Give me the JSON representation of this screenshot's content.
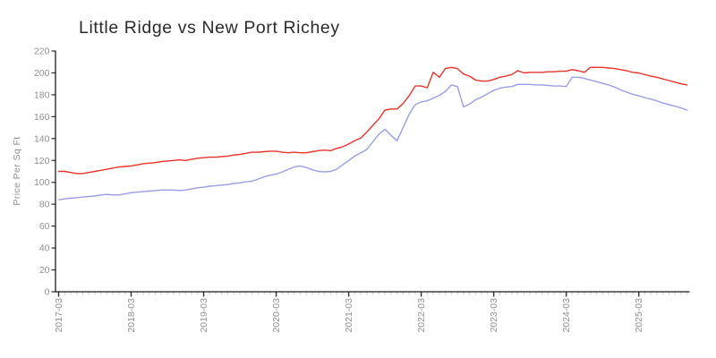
{
  "chart_data": {
    "type": "line",
    "title": "Little Ridge vs New Port Richey",
    "xlabel": "",
    "ylabel": "Price Per Sq Ft",
    "x_interval": "monthly",
    "x_start_month": "2017-03",
    "x_end_month": "2025-11",
    "x_tick_labels": [
      "2017-03",
      "2018-03",
      "2019-03",
      "2020-03",
      "2021-03",
      "2022-03",
      "2023-03",
      "2024-03",
      "2025-03"
    ],
    "x_tick_month_indices": [
      0,
      12,
      24,
      36,
      48,
      60,
      72,
      84,
      96
    ],
    "y_ticks": [
      0,
      20,
      40,
      60,
      80,
      100,
      120,
      140,
      160,
      180,
      200,
      220
    ],
    "ylim": [
      0,
      220
    ],
    "grid": false,
    "legend": "none",
    "series": [
      {
        "name": "Little Ridge",
        "color": "#e8352b",
        "values": [
          110,
          110,
          109,
          108,
          108,
          109,
          110,
          111,
          112,
          113,
          114,
          114.5,
          115,
          116,
          117,
          117.5,
          118,
          119,
          119.5,
          120,
          120.5,
          120,
          121,
          122,
          122.5,
          123,
          123,
          123.5,
          124,
          125,
          125.5,
          126.5,
          127.5,
          127.5,
          128,
          128.5,
          128.5,
          127.5,
          127,
          127.5,
          127,
          127,
          128,
          129,
          129.5,
          129,
          131,
          132.5,
          135,
          138,
          140.5,
          146,
          152,
          158,
          166,
          167,
          167,
          172,
          179,
          188,
          188,
          186.5,
          200.5,
          196,
          204,
          205,
          204,
          199,
          197,
          193.5,
          192.5,
          192.5,
          194,
          196,
          197,
          198.5,
          202,
          200,
          200.5,
          200.5,
          200.5,
          201,
          201,
          201.5,
          201.5,
          203,
          202,
          200.5,
          205,
          205,
          205,
          204.5,
          204,
          203,
          202,
          200.5,
          200,
          198.5,
          197,
          196,
          194.5,
          193,
          191.5,
          190,
          189
        ]
      },
      {
        "name": "New Port Richey",
        "color": "#9b9de4",
        "values": [
          84,
          85,
          85.5,
          86,
          86.5,
          87,
          87.5,
          88.5,
          89,
          88.5,
          88.5,
          89.5,
          90.5,
          91,
          91.5,
          92,
          92.5,
          93,
          93,
          93,
          92.5,
          93,
          94,
          95,
          95.5,
          96.5,
          97,
          97.5,
          98,
          99,
          99.5,
          100.5,
          101,
          103,
          105,
          106.5,
          107.5,
          109.5,
          112,
          114,
          115,
          113.5,
          111.5,
          110,
          109.5,
          110,
          112,
          116,
          120,
          124,
          127,
          130,
          137,
          144,
          148.5,
          143,
          138,
          150,
          162,
          171,
          173.5,
          174.5,
          177,
          179.5,
          183,
          189,
          187.5,
          169,
          171.5,
          175.5,
          178,
          181,
          184,
          186,
          187,
          187.5,
          189.5,
          189.5,
          189.5,
          189,
          189,
          188.5,
          188,
          188,
          187.5,
          196,
          196,
          195,
          193.5,
          192,
          190.5,
          189,
          187,
          184.5,
          182.5,
          180.5,
          179,
          177.5,
          176,
          174.5,
          172.5,
          171,
          169.5,
          168,
          166
        ]
      }
    ]
  },
  "colors": {
    "background": "#ffffff",
    "axis": "#1a1a1a",
    "major_tick": "#3a3a3a",
    "minor_tick": "#cccccc",
    "tick_label": "#909090",
    "title": "#2b2b2b"
  }
}
